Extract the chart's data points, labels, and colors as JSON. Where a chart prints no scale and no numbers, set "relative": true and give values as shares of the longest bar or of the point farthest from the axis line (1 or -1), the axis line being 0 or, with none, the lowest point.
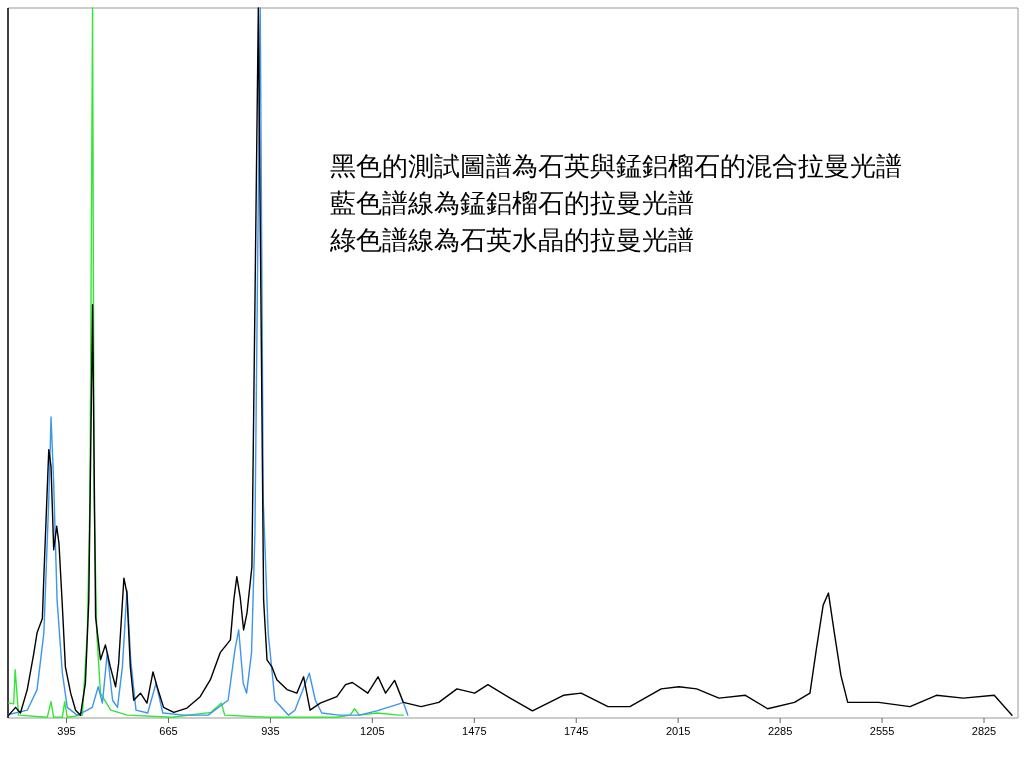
{
  "chart_data": {
    "type": "line",
    "relative": true,
    "tick_labels": "x",
    "xlim": [
      240,
      2915
    ],
    "xticks": [
      395,
      665,
      935,
      1205,
      1475,
      1745,
      2015,
      2285,
      2555,
      2825
    ],
    "annotations": [
      "黑色的測試圖譜為石英與錳鋁榴石的混合拉曼光譜",
      "藍色譜線為錳鋁榴石的拉曼光譜",
      "綠色譜線為石英水晶的拉曼光譜"
    ],
    "series": [
      {
        "color": "#33e633",
        "x": [
          242,
          255,
          259,
          268,
          344,
          354,
          361,
          384,
          390,
          397,
          437,
          450,
          457,
          464,
          468,
          475,
          485,
          512,
          556,
          675,
          778,
          805,
          814,
          930,
          1111,
          1146,
          1158,
          1170,
          1217,
          1276,
          1287
        ],
        "values": [
          0.021,
          0.02,
          0.068,
          0.004,
          0.001,
          0.023,
          0.001,
          0.001,
          0.023,
          0.001,
          0.004,
          0.12,
          0.307,
          1.0,
          0.307,
          0.12,
          0.035,
          0.011,
          0.004,
          0.001,
          0.008,
          0.021,
          0.004,
          0.001,
          0.001,
          0.004,
          0.013,
          0.004,
          0.007,
          0.004,
          0.004
        ]
      },
      {
        "color": "#3d95f0",
        "x": [
          242,
          291,
          317,
          335,
          348,
          354,
          361,
          370,
          384,
          397,
          423,
          450,
          463,
          479,
          490,
          503,
          517,
          530,
          543,
          555,
          565,
          579,
          610,
          632,
          650,
          707,
          770,
          823,
          841,
          851,
          863,
          872,
          885,
          894,
          908,
          916,
          929,
          947,
          983,
          1000,
          1038,
          1054,
          1071,
          1116,
          1170,
          1217,
          1276,
          1287,
          1299
        ],
        "values": [
          0.005,
          0.011,
          0.04,
          0.12,
          0.307,
          0.424,
          0.331,
          0.166,
          0.063,
          0.015,
          0.004,
          0.011,
          0.015,
          0.044,
          0.021,
          0.092,
          0.025,
          0.015,
          0.072,
          0.18,
          0.082,
          0.011,
          0.007,
          0.049,
          0.007,
          0.004,
          0.004,
          0.025,
          0.096,
          0.124,
          0.049,
          0.035,
          0.092,
          0.26,
          1.0,
          0.307,
          0.12,
          0.025,
          0.004,
          0.011,
          0.063,
          0.025,
          0.007,
          0.004,
          0.004,
          0.01,
          0.02,
          0.022,
          0.004
        ]
      },
      {
        "color": "#000000",
        "x": [
          242,
          260,
          273,
          291,
          308,
          317,
          331,
          335,
          348,
          354,
          361,
          369,
          375,
          384,
          392,
          406,
          419,
          432,
          445,
          454,
          464,
          472,
          485,
          498,
          511,
          525,
          533,
          547,
          555,
          564,
          573,
          591,
          608,
          624,
          635,
          652,
          679,
          714,
          749,
          776,
          802,
          829,
          838,
          846,
          855,
          864,
          873,
          886,
          903,
          917,
          926,
          939,
          952,
          979,
          1005,
          1023,
          1040,
          1067,
          1111,
          1134,
          1152,
          1193,
          1220,
          1240,
          1264,
          1287,
          1334,
          1381,
          1429,
          1476,
          1511,
          1570,
          1629,
          1711,
          1758,
          1829,
          1887,
          1970,
          2017,
          2064,
          2123,
          2193,
          2252,
          2323,
          2364,
          2381,
          2399,
          2413,
          2428,
          2446,
          2464,
          2546,
          2629,
          2699,
          2770,
          2852,
          2899
        ],
        "values": [
          0.004,
          0.015,
          0.007,
          0.04,
          0.09,
          0.12,
          0.14,
          0.2,
          0.378,
          0.354,
          0.237,
          0.27,
          0.246,
          0.157,
          0.072,
          0.035,
          0.011,
          0.004,
          0.049,
          0.166,
          0.582,
          0.142,
          0.082,
          0.103,
          0.072,
          0.044,
          0.077,
          0.197,
          0.176,
          0.072,
          0.025,
          0.035,
          0.021,
          0.065,
          0.044,
          0.015,
          0.008,
          0.014,
          0.03,
          0.054,
          0.092,
          0.11,
          0.166,
          0.199,
          0.17,
          0.124,
          0.148,
          0.213,
          1.0,
          0.166,
          0.082,
          0.072,
          0.054,
          0.04,
          0.035,
          0.058,
          0.011,
          0.021,
          0.03,
          0.047,
          0.05,
          0.035,
          0.058,
          0.035,
          0.053,
          0.022,
          0.016,
          0.022,
          0.041,
          0.035,
          0.047,
          0.028,
          0.01,
          0.032,
          0.035,
          0.016,
          0.016,
          0.041,
          0.044,
          0.041,
          0.028,
          0.032,
          0.013,
          0.022,
          0.035,
          0.097,
          0.159,
          0.176,
          0.122,
          0.06,
          0.022,
          0.022,
          0.016,
          0.032,
          0.028,
          0.032,
          0.004
        ]
      }
    ]
  }
}
